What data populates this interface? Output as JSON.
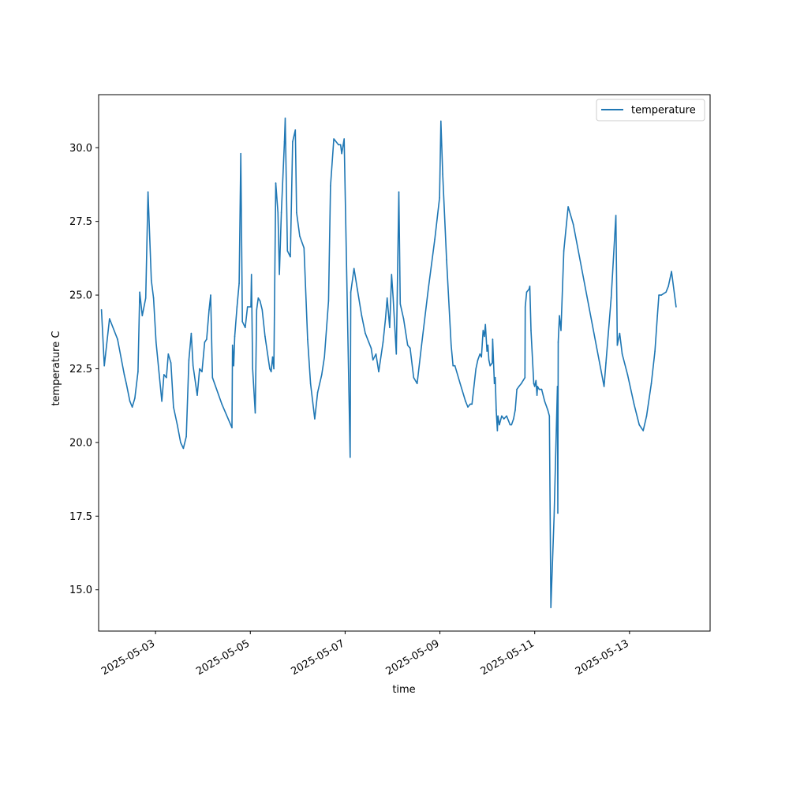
{
  "chart_data": {
    "type": "line",
    "title": "",
    "xlabel": "time",
    "ylabel": "temperature C",
    "x_ticks": [
      "2025-05-03",
      "2025-05-05",
      "2025-05-07",
      "2025-05-09",
      "2025-05-11",
      "2025-05-13"
    ],
    "y_ticks": [
      "15.0",
      "17.5",
      "20.0",
      "22.5",
      "25.0",
      "27.5",
      "30.0"
    ],
    "xlim": [
      "2025-05-01 19:12",
      "2025-05-14 16:48"
    ],
    "ylim": [
      13.6,
      31.8
    ],
    "grid": false,
    "legend": {
      "position": "top-right",
      "entries": [
        "temperature"
      ]
    },
    "series": [
      {
        "name": "temperature",
        "color": "#1f77b4",
        "points": [
          [
            "2025-05-01 20:38",
            24.5
          ],
          [
            "2025-05-01 22:05",
            22.6
          ],
          [
            "2025-05-02 00:43",
            24.2
          ],
          [
            "2025-05-02 04:48",
            23.5
          ],
          [
            "2025-05-02 08:10",
            22.3
          ],
          [
            "2025-05-02 09:14",
            22.0
          ],
          [
            "2025-05-02 11:02",
            21.4
          ],
          [
            "2025-05-02 12:12",
            21.2
          ],
          [
            "2025-05-02 13:31",
            21.5
          ],
          [
            "2025-05-02 15:07",
            22.4
          ],
          [
            "2025-05-02 16:00",
            25.1
          ],
          [
            "2025-05-02 17:17",
            24.3
          ],
          [
            "2025-05-02 19:02",
            24.9
          ],
          [
            "2025-05-02 20:12",
            28.5
          ],
          [
            "2025-05-02 21:53",
            25.5
          ],
          [
            "2025-05-02 23:00",
            24.9
          ],
          [
            "2025-05-03 00:17",
            23.4
          ],
          [
            "2025-05-03 03:12",
            21.4
          ],
          [
            "2025-05-03 04:17",
            22.3
          ],
          [
            "2025-05-03 05:31",
            22.2
          ],
          [
            "2025-05-03 06:29",
            23.0
          ],
          [
            "2025-05-03 07:48",
            22.7
          ],
          [
            "2025-05-03 09:07",
            21.2
          ],
          [
            "2025-05-03 11:02",
            20.6
          ],
          [
            "2025-05-03 12:43",
            20.0
          ],
          [
            "2025-05-03 14:07",
            19.8
          ],
          [
            "2025-05-03 15:36",
            20.2
          ],
          [
            "2025-05-03 16:55",
            22.8
          ],
          [
            "2025-05-03 18:07",
            23.7
          ],
          [
            "2025-05-03 19:02",
            22.6
          ],
          [
            "2025-05-03 21:07",
            21.6
          ],
          [
            "2025-05-03 22:19",
            22.5
          ],
          [
            "2025-05-03 23:31",
            22.4
          ],
          [
            "2025-05-04 00:53",
            23.4
          ],
          [
            "2025-05-04 01:53",
            23.5
          ],
          [
            "2025-05-04 03:07",
            24.5
          ],
          [
            "2025-05-04 03:55",
            25.0
          ],
          [
            "2025-05-04 04:50",
            22.2
          ],
          [
            "2025-05-04 09:36",
            21.3
          ],
          [
            "2025-05-04 14:43",
            20.5
          ],
          [
            "2025-05-04 15:00",
            23.3
          ],
          [
            "2025-05-04 15:36",
            22.6
          ],
          [
            "2025-05-04 16:07",
            23.6
          ],
          [
            "2025-05-04 17:17",
            24.6
          ],
          [
            "2025-05-04 18:22",
            25.4
          ],
          [
            "2025-05-04 19:12",
            29.8
          ],
          [
            "2025-05-04 20:00",
            24.1
          ],
          [
            "2025-05-04 21:26",
            23.9
          ],
          [
            "2025-05-04 22:34",
            24.6
          ],
          [
            "2025-05-05 00:19",
            24.6
          ],
          [
            "2025-05-05 00:34",
            25.7
          ],
          [
            "2025-05-05 01:10",
            22.5
          ],
          [
            "2025-05-05 02:29",
            21.0
          ],
          [
            "2025-05-05 03:12",
            24.5
          ],
          [
            "2025-05-05 04:00",
            24.9
          ],
          [
            "2025-05-05 04:55",
            24.8
          ],
          [
            "2025-05-05 06:00",
            24.5
          ],
          [
            "2025-05-05 07:26",
            23.6
          ],
          [
            "2025-05-05 09:50",
            22.5
          ],
          [
            "2025-05-05 10:34",
            22.4
          ],
          [
            "2025-05-05 11:17",
            22.9
          ],
          [
            "2025-05-05 11:55",
            22.5
          ],
          [
            "2025-05-05 12:53",
            28.8
          ],
          [
            "2025-05-05 14:00",
            27.8
          ],
          [
            "2025-05-05 14:43",
            25.7
          ],
          [
            "2025-05-05 15:43",
            27.8
          ],
          [
            "2025-05-05 17:17",
            30.2
          ],
          [
            "2025-05-05 17:41",
            31.0
          ],
          [
            "2025-05-05 18:48",
            26.5
          ],
          [
            "2025-05-05 20:17",
            26.3
          ],
          [
            "2025-05-05 21:26",
            30.2
          ],
          [
            "2025-05-05 22:48",
            30.6
          ],
          [
            "2025-05-05 23:26",
            27.8
          ],
          [
            "2025-05-06 01:02",
            27.0
          ],
          [
            "2025-05-06 03:12",
            26.6
          ],
          [
            "2025-05-06 05:02",
            23.5
          ],
          [
            "2025-05-06 06:29",
            22.0
          ],
          [
            "2025-05-06 08:38",
            20.8
          ],
          [
            "2025-05-06 10:05",
            21.7
          ],
          [
            "2025-05-06 12:10",
            22.3
          ],
          [
            "2025-05-06 13:31",
            22.9
          ],
          [
            "2025-05-06 15:36",
            24.8
          ],
          [
            "2025-05-06 16:36",
            28.7
          ],
          [
            "2025-05-06 18:17",
            30.3
          ],
          [
            "2025-05-06 20:38",
            30.1
          ],
          [
            "2025-05-06 21:43",
            30.1
          ],
          [
            "2025-05-06 22:17",
            29.8
          ],
          [
            "2025-05-06 23:31",
            30.3
          ],
          [
            "2025-05-07 02:34",
            19.5
          ],
          [
            "2025-05-07 02:53",
            25.1
          ],
          [
            "2025-05-07 04:31",
            25.9
          ],
          [
            "2025-05-07 06:12",
            25.2
          ],
          [
            "2025-05-07 08:24",
            24.3
          ],
          [
            "2025-05-07 10:14",
            23.7
          ],
          [
            "2025-05-07 12:00",
            23.4
          ],
          [
            "2025-05-07 13:12",
            23.2
          ],
          [
            "2025-05-07 14:07",
            22.8
          ],
          [
            "2025-05-07 15:36",
            23.0
          ],
          [
            "2025-05-07 17:02",
            22.4
          ],
          [
            "2025-05-07 19:12",
            23.4
          ],
          [
            "2025-05-07 20:26",
            24.2
          ],
          [
            "2025-05-07 21:17",
            24.9
          ],
          [
            "2025-05-07 22:34",
            23.9
          ],
          [
            "2025-05-07 23:31",
            25.7
          ],
          [
            "2025-05-08 00:19",
            24.9
          ],
          [
            "2025-05-08 01:55",
            23.0
          ],
          [
            "2025-05-08 03:12",
            28.5
          ],
          [
            "2025-05-08 03:55",
            24.7
          ],
          [
            "2025-05-08 05:36",
            24.2
          ],
          [
            "2025-05-08 07:41",
            23.3
          ],
          [
            "2025-05-08 08:55",
            23.2
          ],
          [
            "2025-05-08 10:43",
            22.2
          ],
          [
            "2025-05-08 12:29",
            22.0
          ],
          [
            "2025-05-08 14:43",
            23.3
          ],
          [
            "2025-05-08 18:07",
            25.2
          ],
          [
            "2025-05-08 21:26",
            26.9
          ],
          [
            "2025-05-08 23:50",
            28.3
          ],
          [
            "2025-05-09 00:29",
            30.9
          ],
          [
            "2025-05-09 01:26",
            29.1
          ],
          [
            "2025-05-09 03:22",
            26.2
          ],
          [
            "2025-05-09 05:41",
            23.3
          ],
          [
            "2025-05-09 06:38",
            22.6
          ],
          [
            "2025-05-09 07:36",
            22.6
          ],
          [
            "2025-05-09 10:14",
            22.0
          ],
          [
            "2025-05-09 12:58",
            21.4
          ],
          [
            "2025-05-09 14:10",
            21.2
          ],
          [
            "2025-05-09 15:22",
            21.3
          ],
          [
            "2025-05-09 16:14",
            21.3
          ],
          [
            "2025-05-09 18:14",
            22.5
          ],
          [
            "2025-05-09 19:12",
            22.8
          ],
          [
            "2025-05-09 20:17",
            23.0
          ],
          [
            "2025-05-09 21:02",
            22.9
          ],
          [
            "2025-05-09 21:53",
            23.8
          ],
          [
            "2025-05-09 22:31",
            23.6
          ],
          [
            "2025-05-09 23:02",
            24.0
          ],
          [
            "2025-05-09 23:50",
            23.1
          ],
          [
            "2025-05-10 00:19",
            23.3
          ],
          [
            "2025-05-10 00:48",
            22.8
          ],
          [
            "2025-05-10 01:26",
            22.6
          ],
          [
            "2025-05-10 02:29",
            22.7
          ],
          [
            "2025-05-10 02:43",
            23.5
          ],
          [
            "2025-05-10 03:36",
            22.0
          ],
          [
            "2025-05-10 04:01",
            22.2
          ],
          [
            "2025-05-10 04:31",
            21.1
          ],
          [
            "2025-05-10 05:07",
            20.4
          ],
          [
            "2025-05-10 05:22",
            20.9
          ],
          [
            "2025-05-10 06:05",
            20.6
          ],
          [
            "2025-05-10 07:17",
            20.9
          ],
          [
            "2025-05-10 08:24",
            20.8
          ],
          [
            "2025-05-10 09:46",
            20.9
          ],
          [
            "2025-05-10 11:31",
            20.6
          ],
          [
            "2025-05-10 12:14",
            20.6
          ],
          [
            "2025-05-10 13:17",
            20.8
          ],
          [
            "2025-05-10 14:07",
            21.1
          ],
          [
            "2025-05-10 14:58",
            21.8
          ],
          [
            "2025-05-10 16:00",
            21.9
          ],
          [
            "2025-05-10 17:12",
            22.0
          ],
          [
            "2025-05-10 19:02",
            22.2
          ],
          [
            "2025-05-10 19:12",
            24.6
          ],
          [
            "2025-05-10 19:55",
            25.1
          ],
          [
            "2025-05-10 21:07",
            25.2
          ],
          [
            "2025-05-10 21:31",
            25.3
          ],
          [
            "2025-05-10 22:07",
            23.8
          ],
          [
            "2025-05-10 23:31",
            22.0
          ],
          [
            "2025-05-11 00:00",
            21.9
          ],
          [
            "2025-05-11 00:38",
            22.1
          ],
          [
            "2025-05-11 01:10",
            21.6
          ],
          [
            "2025-05-11 01:26",
            21.9
          ],
          [
            "2025-05-11 02:17",
            21.8
          ],
          [
            "2025-05-11 03:31",
            21.8
          ],
          [
            "2025-05-11 05:02",
            21.4
          ],
          [
            "2025-05-11 06:38",
            21.1
          ],
          [
            "2025-05-11 07:26",
            20.9
          ],
          [
            "2025-05-11 08:10",
            14.4
          ],
          [
            "2025-05-11 09:50",
            17.5
          ],
          [
            "2025-05-11 11:31",
            21.9
          ],
          [
            "2025-05-11 11:41",
            17.6
          ],
          [
            "2025-05-11 11:55",
            23.4
          ],
          [
            "2025-05-11 12:29",
            24.3
          ],
          [
            "2025-05-11 13:17",
            23.8
          ],
          [
            "2025-05-11 14:43",
            26.5
          ],
          [
            "2025-05-11 16:55",
            28.0
          ],
          [
            "2025-05-11 19:31",
            27.4
          ],
          [
            "2025-05-12 11:07",
            21.9
          ],
          [
            "2025-05-12 12:05",
            22.7
          ],
          [
            "2025-05-12 14:43",
            24.9
          ],
          [
            "2025-05-12 17:07",
            27.7
          ],
          [
            "2025-05-12 17:50",
            23.3
          ],
          [
            "2025-05-12 19:02",
            23.7
          ],
          [
            "2025-05-12 20:17",
            23.0
          ],
          [
            "2025-05-12 23:02",
            22.3
          ],
          [
            "2025-05-13 02:17",
            21.3
          ],
          [
            "2025-05-13 04:55",
            20.6
          ],
          [
            "2025-05-13 06:55",
            20.4
          ],
          [
            "2025-05-13 08:38",
            20.9
          ],
          [
            "2025-05-13 11:02",
            22.0
          ],
          [
            "2025-05-13 12:53",
            23.1
          ],
          [
            "2025-05-13 14:07",
            24.3
          ],
          [
            "2025-05-13 14:53",
            25.0
          ],
          [
            "2025-05-13 16:07",
            25.0
          ],
          [
            "2025-05-13 18:29",
            25.1
          ],
          [
            "2025-05-13 19:41",
            25.3
          ],
          [
            "2025-05-13 21:17",
            25.8
          ],
          [
            "2025-05-13 23:36",
            24.6
          ]
        ]
      }
    ]
  }
}
